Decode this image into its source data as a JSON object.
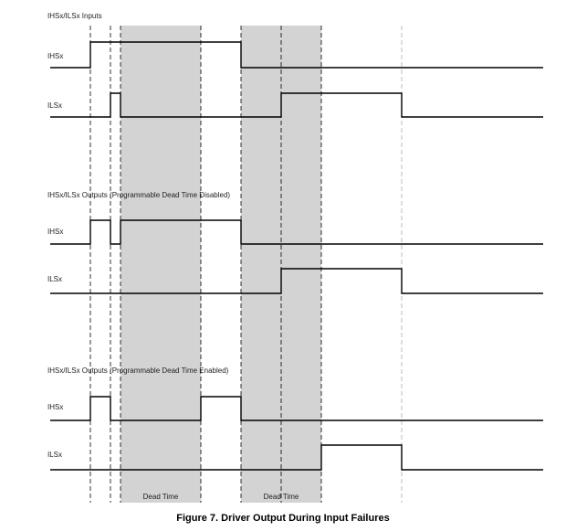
{
  "sections": [
    {
      "title": "IHSx/ILSx Inputs",
      "signals": [
        {
          "label": "IHSx"
        },
        {
          "label": "ILSx"
        }
      ]
    },
    {
      "title": "IHSx/ILSx Outputs (Programmable Dead Time Disabled)",
      "signals": [
        {
          "label": "IHSx"
        },
        {
          "label": "ILSx"
        }
      ]
    },
    {
      "title": "IHSx/ILSx Outputs (Programmable Dead Time Enabled)",
      "signals": [
        {
          "label": "IHSx"
        },
        {
          "label": "ILSx"
        }
      ]
    }
  ],
  "dead_time_labels": [
    "Dead Time",
    "Dead Time"
  ],
  "caption": "Figure 7.  Driver Output During Input Failures"
}
